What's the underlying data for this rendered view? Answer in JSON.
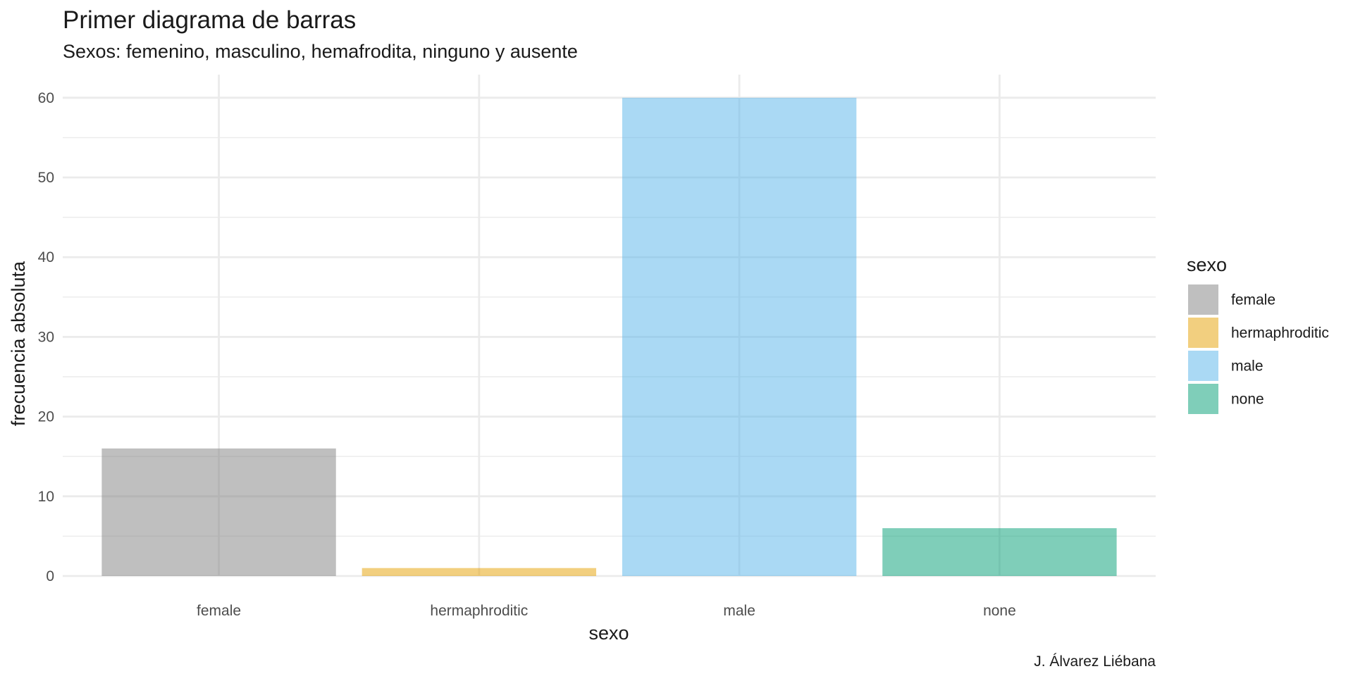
{
  "chart_data": {
    "type": "bar",
    "title": "Primer diagrama de barras",
    "subtitle": "Sexos: femenino, masculino, hemafrodita, ninguno y ausente",
    "xlabel": "sexo",
    "ylabel": "frecuencia absoluta",
    "caption": "J. Álvarez Liébana",
    "categories": [
      "female",
      "hermaphroditic",
      "male",
      "none"
    ],
    "values": [
      16,
      1,
      60,
      6
    ],
    "colors": [
      "#808080",
      "#E69F00",
      "#56B4E9",
      "#009E73"
    ],
    "bar_opacity": 0.5,
    "ylim": [
      0,
      62.9
    ],
    "yticks": [
      0,
      10,
      20,
      30,
      40,
      50,
      60
    ],
    "grid": true,
    "legend": {
      "title": "sexo",
      "position": "right",
      "entries": [
        "female",
        "hermaphroditic",
        "male",
        "none"
      ]
    }
  }
}
